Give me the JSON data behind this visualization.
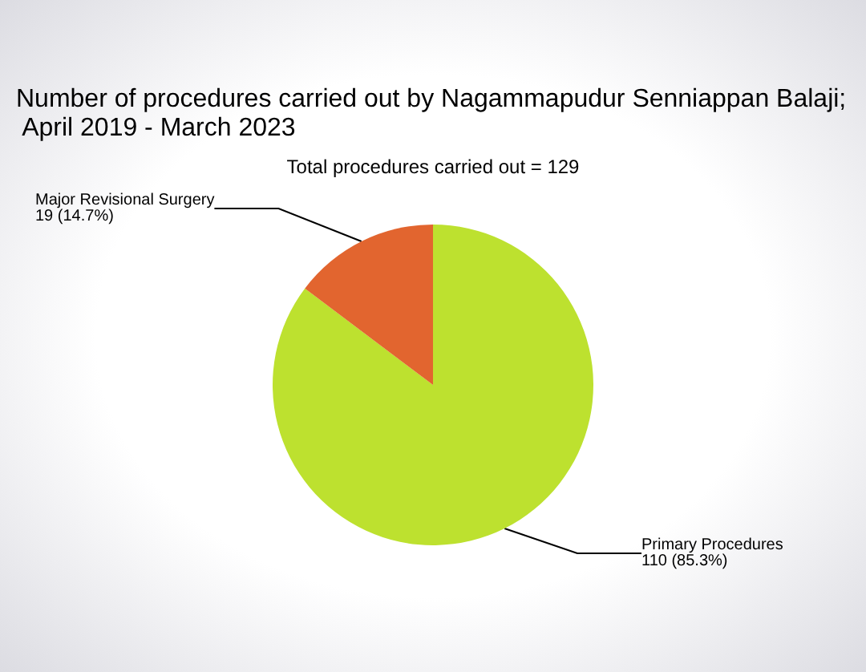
{
  "chart_data": {
    "type": "pie",
    "title": "Number of procedures carried out by Nagammapudur Senniappan Balaji; April 2019 - March 2023",
    "subtitle": "Total procedures carried out = 129",
    "categories": [
      "Primary Procedures",
      "Major Revisional Surgery"
    ],
    "values": [
      110,
      19
    ],
    "colors": [
      "#bde12f",
      "#e2652f"
    ],
    "value_labels": [
      "110 (85.3%)",
      "19 (14.7%)"
    ],
    "legend": false
  }
}
